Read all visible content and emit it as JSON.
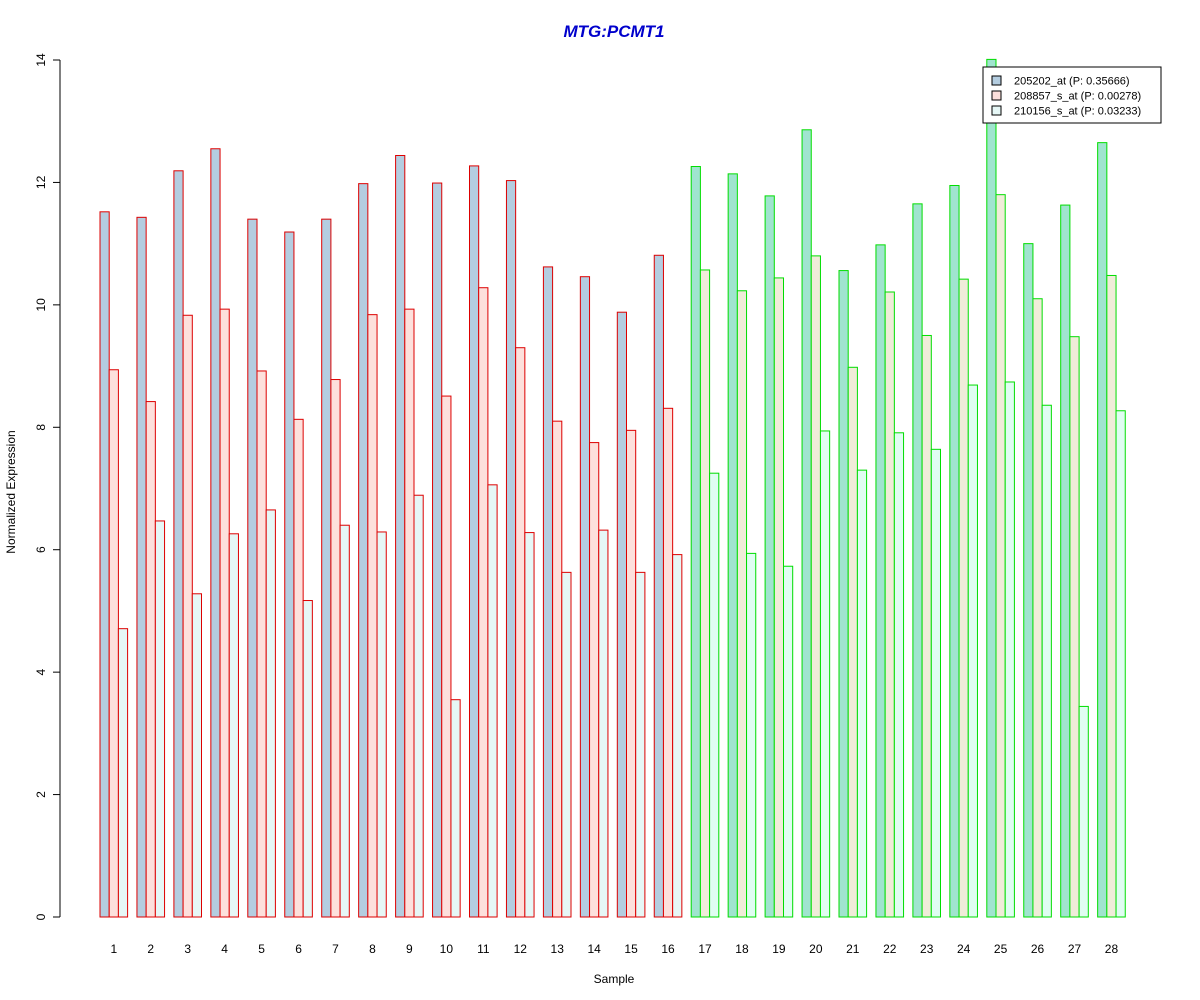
{
  "chart_data": {
    "type": "bar",
    "title": "MTG:PCMT1",
    "xlabel": "Sample",
    "ylabel": "Normalized Expression",
    "ylim": [
      0,
      14
    ],
    "yticks": [
      "0",
      "2",
      "4",
      "6",
      "8",
      "10",
      "12",
      "14"
    ],
    "grid": false,
    "legend_position": "top-right",
    "categories": [
      "1",
      "2",
      "3",
      "4",
      "5",
      "6",
      "7",
      "8",
      "9",
      "10",
      "11",
      "12",
      "13",
      "14",
      "15",
      "16",
      "17",
      "18",
      "19",
      "20",
      "21",
      "22",
      "23",
      "24",
      "25",
      "26",
      "27",
      "28"
    ],
    "series": [
      {
        "name": "205202_at (P: 0.35666)",
        "values": [
          11.52,
          11.43,
          12.19,
          12.55,
          11.4,
          11.19,
          11.4,
          11.98,
          12.44,
          11.99,
          12.27,
          12.03,
          10.62,
          10.46,
          9.88,
          10.81,
          12.26,
          12.14,
          11.78,
          12.86,
          10.56,
          10.98,
          11.65,
          11.95,
          14.01,
          11.0,
          11.63,
          12.65
        ]
      },
      {
        "name": "208857_s_at (P: 0.00278)",
        "values": [
          8.94,
          8.42,
          9.83,
          9.93,
          8.92,
          8.13,
          8.78,
          9.84,
          9.93,
          8.51,
          10.28,
          9.3,
          8.1,
          7.75,
          7.95,
          8.31,
          10.57,
          10.23,
          10.44,
          10.8,
          8.98,
          10.21,
          9.5,
          10.42,
          11.8,
          10.1,
          9.48,
          10.48
        ]
      },
      {
        "name": "210156_s_at (P: 0.03233)",
        "values": [
          4.71,
          6.47,
          5.28,
          6.26,
          6.65,
          5.17,
          6.4,
          6.29,
          6.89,
          3.55,
          7.06,
          6.28,
          5.63,
          6.32,
          5.63,
          5.92,
          7.25,
          5.94,
          5.73,
          7.94,
          7.3,
          7.91,
          7.64,
          8.69,
          8.74,
          8.36,
          3.44,
          8.27
        ]
      }
    ],
    "group_colors": {
      "1-16": {
        "border": "#dd0000",
        "fills": [
          "#b4cde0",
          "#fde0dc",
          "#e6f7f6"
        ]
      },
      "17-28": {
        "border": "#00dd00",
        "fills": [
          "#a0e4cf",
          "#f0ecd9",
          "#e0fdf2"
        ]
      }
    },
    "colors": {
      "title": "#0000cc",
      "axis": "#000000"
    }
  }
}
